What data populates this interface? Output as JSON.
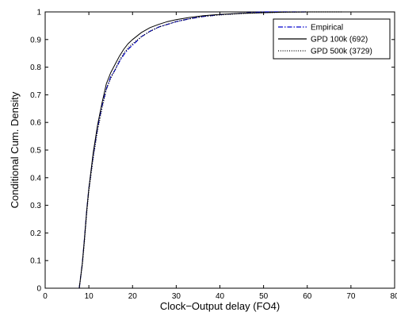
{
  "chart_data": {
    "type": "line",
    "title": "",
    "xlabel": "Clock−Output delay (FO4)",
    "ylabel": "Conditional Cum. Density",
    "xlim": [
      0,
      80
    ],
    "ylim": [
      0,
      1
    ],
    "xticks": [
      0,
      10,
      20,
      30,
      40,
      50,
      60,
      70,
      80
    ],
    "yticks": [
      0,
      0.1,
      0.2,
      0.3,
      0.4,
      0.5,
      0.6,
      0.7,
      0.8,
      0.9,
      1
    ],
    "xtick_labels": [
      "0",
      "10",
      "20",
      "30",
      "40",
      "50",
      "60",
      "70",
      "80"
    ],
    "ytick_labels": [
      "0",
      "0.1",
      "0.2",
      "0.3",
      "0.4",
      "0.5",
      "0.6",
      "0.7",
      "0.8",
      "0.9",
      "1"
    ],
    "grid": false,
    "legend_position": "top-right",
    "series": [
      {
        "name": "Empirical",
        "style": "dashdot",
        "color": "#0000cc",
        "x": [
          7.8,
          8.5,
          9.0,
          9.5,
          10,
          11,
          12,
          13,
          14,
          15,
          16,
          17,
          18,
          19,
          20,
          22,
          24,
          26,
          28,
          30,
          33,
          36,
          40,
          45,
          50,
          55,
          60
        ],
        "y": [
          0.0,
          0.09,
          0.18,
          0.28,
          0.36,
          0.48,
          0.58,
          0.66,
          0.72,
          0.765,
          0.79,
          0.82,
          0.845,
          0.865,
          0.88,
          0.91,
          0.93,
          0.945,
          0.955,
          0.965,
          0.975,
          0.983,
          0.99,
          0.995,
          1.0,
          1.0,
          1.0
        ]
      },
      {
        "name": "GPD 100k (692)",
        "style": "solid",
        "color": "#000000",
        "x": [
          7.8,
          8.5,
          9.0,
          9.5,
          10,
          11,
          12,
          13,
          14,
          15,
          16,
          17,
          18,
          19,
          20,
          22,
          24,
          26,
          28,
          30,
          33,
          36,
          40,
          45,
          50,
          55,
          60,
          63
        ],
        "y": [
          0.0,
          0.09,
          0.18,
          0.28,
          0.36,
          0.49,
          0.59,
          0.67,
          0.74,
          0.78,
          0.81,
          0.84,
          0.865,
          0.885,
          0.9,
          0.925,
          0.943,
          0.955,
          0.965,
          0.972,
          0.98,
          0.986,
          0.991,
          0.995,
          0.997,
          0.999,
          1.0,
          1.0
        ]
      },
      {
        "name": "GPD 500k (3729)",
        "style": "dotted",
        "color": "#000000",
        "x": [
          7.8,
          8.5,
          9.0,
          9.5,
          10,
          11,
          12,
          13,
          14,
          15,
          16,
          17,
          18,
          19,
          20,
          22,
          24,
          26,
          28,
          30,
          33,
          36,
          40,
          45,
          50,
          55,
          60,
          65,
          68
        ],
        "y": [
          0.0,
          0.085,
          0.17,
          0.27,
          0.35,
          0.47,
          0.57,
          0.65,
          0.72,
          0.76,
          0.79,
          0.825,
          0.85,
          0.87,
          0.885,
          0.91,
          0.93,
          0.945,
          0.955,
          0.965,
          0.975,
          0.983,
          0.989,
          0.994,
          0.997,
          0.999,
          1.0,
          1.0,
          1.0
        ]
      }
    ]
  }
}
